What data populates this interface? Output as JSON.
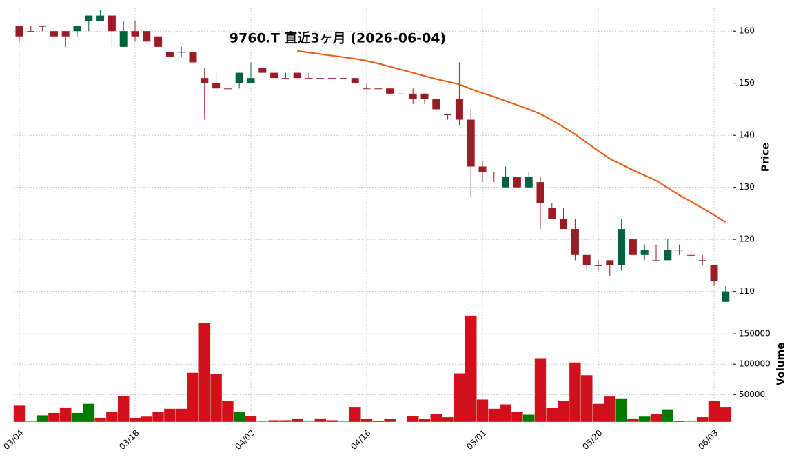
{
  "chart_data": {
    "type": "candlestick",
    "title": "9760.T  直近3ヶ月 (2026-06-04)",
    "ylabel": "Price",
    "volume_label": "Volume",
    "categories": [
      "03/04",
      null,
      null,
      null,
      null,
      null,
      null,
      null,
      null,
      null,
      "03/18",
      null,
      null,
      null,
      null,
      null,
      null,
      null,
      null,
      null,
      "04/02",
      null,
      null,
      null,
      null,
      null,
      null,
      null,
      null,
      null,
      "04/16",
      null,
      null,
      null,
      null,
      null,
      null,
      null,
      null,
      null,
      "05/01",
      null,
      null,
      null,
      null,
      null,
      null,
      null,
      null,
      null,
      "05/20",
      null,
      null,
      null,
      null,
      null,
      null,
      null,
      null,
      null,
      "06/03",
      null
    ],
    "open": [
      161,
      160,
      161,
      160,
      160,
      160,
      162,
      162,
      163,
      157,
      160,
      160,
      159,
      156,
      156,
      156,
      151,
      150,
      149,
      150,
      150,
      153,
      152,
      151,
      152,
      151,
      151,
      151,
      151,
      151,
      149,
      149,
      149,
      148,
      148,
      148,
      147,
      144,
      147,
      143,
      134,
      133,
      130,
      132,
      130,
      131,
      126,
      124,
      122,
      117,
      115,
      116,
      115,
      120,
      117,
      116,
      116,
      118,
      117,
      116,
      115,
      108
    ],
    "high": [
      161,
      161,
      161,
      160,
      160,
      161,
      163,
      164,
      163,
      162,
      162,
      160,
      159,
      156,
      157,
      156,
      153,
      152,
      149,
      152,
      154,
      153,
      153,
      152,
      152,
      152,
      151,
      151,
      151,
      151,
      150,
      149,
      149,
      148,
      149,
      148,
      147,
      144,
      154,
      145,
      135,
      133,
      134,
      132,
      133,
      132,
      127,
      126,
      124,
      117,
      116,
      116,
      124,
      120,
      119,
      119,
      120,
      119,
      118,
      117,
      115,
      111
    ],
    "low": [
      158,
      160,
      160,
      158,
      157,
      159,
      160,
      162,
      157,
      157,
      158,
      158,
      157,
      155,
      155,
      154,
      143,
      148,
      149,
      149,
      150,
      152,
      151,
      151,
      151,
      151,
      151,
      151,
      151,
      150,
      149,
      149,
      148,
      148,
      146,
      146,
      145,
      143,
      142,
      128,
      131,
      131,
      130,
      130,
      130,
      122,
      124,
      122,
      116,
      114,
      114,
      113,
      114,
      117,
      116,
      116,
      116,
      117,
      116,
      115,
      111,
      108
    ],
    "close": [
      159,
      160,
      161,
      159,
      159,
      161,
      163,
      163,
      160,
      160,
      159,
      158,
      157,
      155,
      156,
      154,
      150,
      149,
      149,
      152,
      151,
      152,
      151,
      151,
      151,
      151,
      151,
      151,
      151,
      150,
      149,
      149,
      148,
      148,
      147,
      147,
      145,
      144,
      143,
      134,
      133,
      133,
      132,
      130,
      132,
      127,
      124,
      122,
      117,
      115,
      115,
      115,
      122,
      117,
      118,
      116,
      118,
      118,
      117,
      116,
      112,
      110
    ],
    "up_color": "#006340",
    "down_color": "#9b1c24",
    "ma": {
      "color": "#e8601c",
      "values": [
        null,
        null,
        null,
        null,
        null,
        null,
        null,
        null,
        null,
        null,
        null,
        null,
        null,
        null,
        null,
        null,
        null,
        null,
        null,
        null,
        null,
        null,
        null,
        null,
        156.2,
        155.9,
        155.6,
        155.3,
        155.0,
        154.7,
        154.3,
        153.8,
        153.2,
        152.6,
        152.0,
        151.4,
        150.8,
        150.3,
        149.8,
        148.9,
        148.1,
        147.4,
        146.6,
        145.8,
        145.0,
        144.1,
        142.9,
        141.6,
        140.2,
        138.6,
        137.0,
        135.5,
        134.4,
        133.3,
        132.3,
        131.3,
        129.9,
        128.5,
        127.3,
        126.0,
        124.7,
        123.3
      ]
    },
    "volume": [
      32000,
      6000,
      16000,
      20000,
      29000,
      20000,
      35000,
      12000,
      22000,
      48000,
      12000,
      14000,
      22000,
      27000,
      27000,
      86000,
      168000,
      84000,
      40000,
      22000,
      15000,
      6000,
      8000,
      8000,
      11000,
      6000,
      11000,
      8000,
      6000,
      30000,
      10000,
      7000,
      10000,
      5000,
      15000,
      10000,
      18000,
      13000,
      85000,
      180000,
      42000,
      27000,
      34000,
      22000,
      17000,
      110000,
      28000,
      40000,
      103000,
      82000,
      35000,
      47000,
      44000,
      11000,
      14000,
      18000,
      26000,
      7000,
      6000,
      13000,
      40000,
      30000
    ],
    "volume_colors": [
      "#d0101a",
      "#007a00",
      "#007a00",
      "#d0101a",
      "#d0101a",
      "#007a00",
      "#007a00",
      "#d0101a",
      "#d0101a",
      "#d0101a",
      "#d0101a",
      "#d0101a",
      "#d0101a",
      "#d0101a",
      "#d0101a",
      "#d0101a",
      "#d0101a",
      "#d0101a",
      "#d0101a",
      "#007a00",
      "#d0101a",
      "#007a00",
      "#d0101a",
      "#d0101a",
      "#d0101a",
      "#d0101a",
      "#d0101a",
      "#d0101a",
      "#d0101a",
      "#d0101a",
      "#d0101a",
      "#d0101a",
      "#d0101a",
      "#d0101a",
      "#d0101a",
      "#d0101a",
      "#d0101a",
      "#d0101a",
      "#d0101a",
      "#d0101a",
      "#d0101a",
      "#d0101a",
      "#d0101a",
      "#d0101a",
      "#007a00",
      "#d0101a",
      "#d0101a",
      "#d0101a",
      "#d0101a",
      "#d0101a",
      "#d0101a",
      "#d0101a",
      "#007a00",
      "#d0101a",
      "#007a00",
      "#d0101a",
      "#007a00",
      "#d0101a",
      "#d0101a",
      "#d0101a",
      "#d0101a",
      "#d0101a"
    ],
    "ylim": [
      107.7,
      164.4
    ],
    "yticks": [
      110,
      120,
      130,
      140,
      150,
      160
    ],
    "volume_ylim": [
      5000,
      200000
    ],
    "volume_ticks": [
      50000,
      100000,
      150000
    ],
    "grid": true
  }
}
